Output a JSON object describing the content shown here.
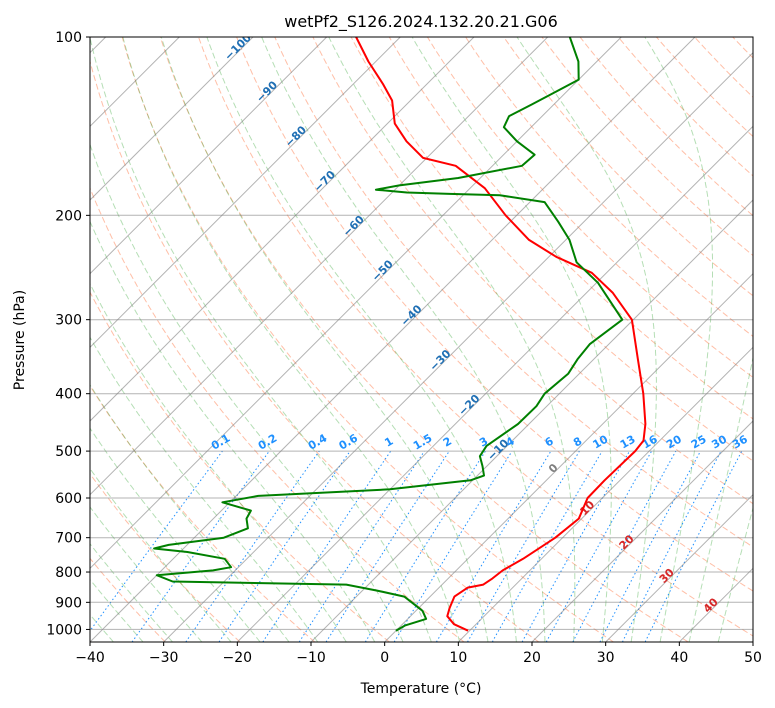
{
  "chart_data": {
    "type": "line",
    "title": "wetPf2_S126.2024.132.20.21.G06",
    "xlabel": "Temperature (°C)",
    "ylabel": "Pressure (hPa)",
    "xlim": [
      -40,
      50
    ],
    "ylim": [
      1050,
      100
    ],
    "y_scale": "log",
    "grid": true,
    "x_ticks": [
      "−40",
      "−30",
      "−20",
      "−10",
      "0",
      "10",
      "20",
      "30",
      "40",
      "50"
    ],
    "y_ticks": [
      "100",
      "200",
      "300",
      "400",
      "500",
      "600",
      "700",
      "800",
      "900",
      "1000"
    ],
    "x_tick_values": [
      -40,
      -30,
      -20,
      -10,
      0,
      10,
      20,
      30,
      40,
      50
    ],
    "y_tick_values": [
      100,
      200,
      300,
      400,
      500,
      600,
      700,
      800,
      900,
      1000
    ],
    "series": [
      {
        "role": "temperature",
        "color": "#ff0000",
        "points": [
          [
            1005,
            9.8
          ],
          [
            980,
            7
          ],
          [
            950,
            5
          ],
          [
            920,
            4.2
          ],
          [
            880,
            3.3
          ],
          [
            850,
            3.9
          ],
          [
            840,
            5.6
          ],
          [
            820,
            6
          ],
          [
            795,
            6.3
          ],
          [
            760,
            7.5
          ],
          [
            700,
            9
          ],
          [
            650,
            9.6
          ],
          [
            600,
            8
          ],
          [
            560,
            7.9
          ],
          [
            500,
            8.1
          ],
          [
            480,
            7.8
          ],
          [
            450,
            5.8
          ],
          [
            400,
            1.4
          ],
          [
            350,
            -4
          ],
          [
            300,
            -10.2
          ],
          [
            270,
            -16.5
          ],
          [
            250,
            -22
          ],
          [
            235,
            -29
          ],
          [
            220,
            -35
          ],
          [
            200,
            -41.5
          ],
          [
            180,
            -48
          ],
          [
            165,
            -55
          ],
          [
            160,
            -60.5
          ],
          [
            150,
            -65
          ],
          [
            140,
            -69
          ],
          [
            128,
            -72.5
          ],
          [
            120,
            -76
          ],
          [
            110,
            -81
          ],
          [
            100,
            -86
          ]
        ]
      },
      {
        "role": "dewpoint",
        "color": "#008000",
        "points": [
          [
            1005,
            0
          ],
          [
            985,
            0.5
          ],
          [
            960,
            2.5
          ],
          [
            930,
            0.9
          ],
          [
            880,
            -3.5
          ],
          [
            860,
            -8
          ],
          [
            840,
            -13
          ],
          [
            830,
            -37
          ],
          [
            810,
            -40
          ],
          [
            795,
            -33
          ],
          [
            785,
            -31
          ],
          [
            760,
            -33
          ],
          [
            740,
            -39
          ],
          [
            730,
            -44
          ],
          [
            720,
            -42.5
          ],
          [
            700,
            -36
          ],
          [
            675,
            -34
          ],
          [
            650,
            -35.5
          ],
          [
            630,
            -36
          ],
          [
            610,
            -41
          ],
          [
            595,
            -37
          ],
          [
            580,
            -20
          ],
          [
            560,
            -10.3
          ],
          [
            550,
            -9.1
          ],
          [
            530,
            -10.6
          ],
          [
            510,
            -12.3
          ],
          [
            490,
            -12.8
          ],
          [
            450,
            -11.5
          ],
          [
            420,
            -11.4
          ],
          [
            400,
            -12
          ],
          [
            370,
            -11.5
          ],
          [
            350,
            -12.2
          ],
          [
            330,
            -12.6
          ],
          [
            300,
            -11.5
          ],
          [
            280,
            -15.5
          ],
          [
            260,
            -19.8
          ],
          [
            240,
            -25.5
          ],
          [
            220,
            -29.5
          ],
          [
            205,
            -33.5
          ],
          [
            190,
            -38
          ],
          [
            185,
            -45
          ],
          [
            184,
            -52
          ],
          [
            183,
            -58
          ],
          [
            181,
            -62.6
          ],
          [
            178,
            -60
          ],
          [
            173,
            -53
          ],
          [
            165,
            -46
          ],
          [
            158,
            -45.8
          ],
          [
            150,
            -50
          ],
          [
            142,
            -53.7
          ],
          [
            136,
            -54.5
          ],
          [
            130,
            -53
          ],
          [
            124,
            -51.5
          ],
          [
            118,
            -50
          ],
          [
            110,
            -52.5
          ],
          [
            100,
            -57
          ]
        ]
      }
    ],
    "dry_adiabat_labels": [
      "−100",
      "−90",
      "−80",
      "−70",
      "−60",
      "−50",
      "−40",
      "−30",
      "−20",
      "−10"
    ],
    "mixing_ratio_labels": [
      "0.1",
      "0.2",
      "0.4",
      "0.6",
      "1",
      "1.5",
      "2",
      "3",
      "4",
      "6",
      "8",
      "10",
      "13",
      "16",
      "20",
      "25",
      "30",
      "36"
    ],
    "isotherm_labels": [
      "0",
      "10",
      "20",
      "30",
      "40"
    ]
  }
}
